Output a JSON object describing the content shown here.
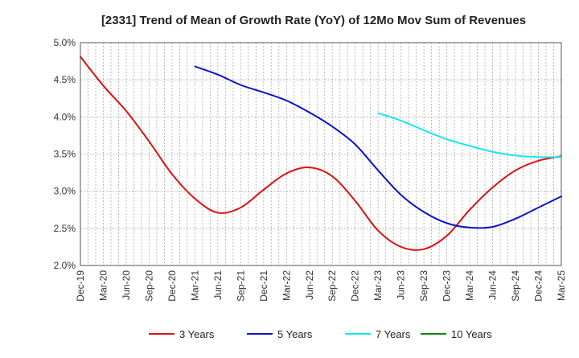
{
  "chart_data": {
    "type": "line",
    "title": "[2331]  Trend of Mean of Growth Rate (YoY) of 12Mo Mov Sum of Revenues",
    "xlabel": "",
    "ylabel": "",
    "ylim": [
      2.0,
      5.0
    ],
    "y_ticks": [
      "2.0%",
      "2.5%",
      "3.0%",
      "3.5%",
      "4.0%",
      "4.5%",
      "5.0%"
    ],
    "y_tick_values": [
      2.0,
      2.5,
      3.0,
      3.5,
      4.0,
      4.5,
      5.0
    ],
    "x_ticks": [
      "Dec-19",
      "Mar-20",
      "Jun-20",
      "Sep-20",
      "Dec-20",
      "Mar-21",
      "Jun-21",
      "Sep-21",
      "Dec-21",
      "Mar-22",
      "Jun-22",
      "Sep-22",
      "Dec-22",
      "Mar-23",
      "Jun-23",
      "Sep-23",
      "Dec-23",
      "Mar-24",
      "Jun-24",
      "Sep-24",
      "Dec-24",
      "Mar-25"
    ],
    "x_range_months": [
      0,
      63
    ],
    "grid": true,
    "legend_position": "bottom",
    "series": [
      {
        "name": "3 Years",
        "color": "#dd1111",
        "x": [
          0,
          3,
          6,
          9,
          12,
          15,
          18,
          21,
          24,
          27,
          30,
          33,
          36,
          39,
          42,
          45,
          48,
          51,
          54,
          57,
          60,
          63
        ],
        "values": [
          4.81,
          4.42,
          4.08,
          3.67,
          3.23,
          2.9,
          2.71,
          2.78,
          3.02,
          3.24,
          3.32,
          3.2,
          2.87,
          2.47,
          2.25,
          2.22,
          2.4,
          2.75,
          3.05,
          3.28,
          3.41,
          3.47
        ]
      },
      {
        "name": "5 Years",
        "color": "#0a14c8",
        "x": [
          15,
          18,
          21,
          24,
          27,
          30,
          33,
          36,
          39,
          42,
          45,
          48,
          51,
          54,
          57,
          60,
          63
        ],
        "values": [
          4.68,
          4.57,
          4.43,
          4.33,
          4.22,
          4.06,
          3.87,
          3.63,
          3.28,
          2.95,
          2.72,
          2.57,
          2.51,
          2.52,
          2.63,
          2.78,
          2.93
        ]
      },
      {
        "name": "7 Years",
        "color": "#19e6f0",
        "x": [
          39,
          42,
          45,
          48,
          51,
          54,
          57,
          60,
          63
        ],
        "values": [
          4.05,
          3.95,
          3.82,
          3.7,
          3.61,
          3.53,
          3.48,
          3.46,
          3.46
        ]
      },
      {
        "name": "10 Years",
        "color": "#118811",
        "x": [],
        "values": []
      }
    ]
  }
}
